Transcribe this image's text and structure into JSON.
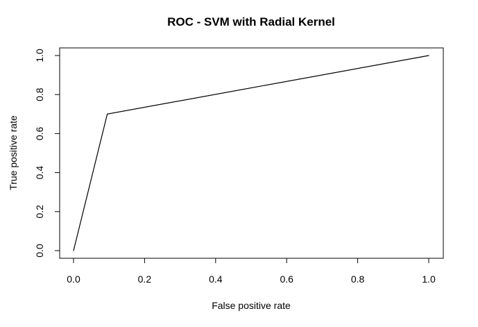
{
  "chart_data": {
    "type": "line",
    "title": "ROC - SVM with Radial Kernel",
    "xlabel": "False positive rate",
    "ylabel": "True positive rate",
    "xlim": [
      0,
      1
    ],
    "ylim": [
      0,
      1
    ],
    "x_ticks": [
      "0.0",
      "0.2",
      "0.4",
      "0.6",
      "0.8",
      "1.0"
    ],
    "y_ticks": [
      "0.0",
      "0.2",
      "0.4",
      "0.6",
      "0.8",
      "1.0"
    ],
    "grid": false,
    "series": [
      {
        "x": [
          0,
          0.095,
          1
        ],
        "y": [
          0,
          0.7,
          1
        ],
        "color": "#000000"
      }
    ]
  }
}
